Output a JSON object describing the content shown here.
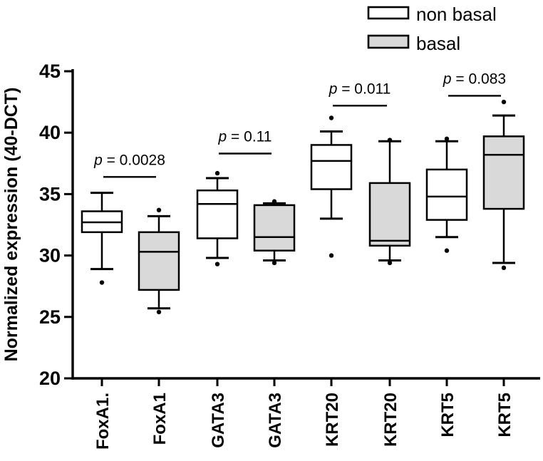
{
  "chart_data": {
    "type": "box",
    "title": "",
    "xlabel": "",
    "ylabel": "Normalized expression (40-DCT)",
    "ylim": [
      20,
      45
    ],
    "yticks": [
      20,
      25,
      30,
      35,
      40,
      45
    ],
    "grid": false,
    "legend_position": "top-right",
    "legend": [
      {
        "label": "non basal",
        "fill": "#ffffff"
      },
      {
        "label": "basal",
        "fill": "#d9d9d9"
      }
    ],
    "colors": {
      "stroke": "#000000",
      "non_basal_fill": "#ffffff",
      "basal_fill": "#d9d9d9"
    },
    "groups": [
      {
        "label": "FoxA1.",
        "series": "non basal",
        "fill": "#ffffff",
        "whisker_low": 28.9,
        "q1": 31.9,
        "median": 32.7,
        "q3": 33.6,
        "whisker_high": 35.1,
        "outliers": [
          27.8
        ]
      },
      {
        "label": "FoxA1",
        "series": "basal",
        "fill": "#d9d9d9",
        "whisker_low": 25.7,
        "q1": 27.2,
        "median": 30.3,
        "q3": 31.9,
        "whisker_high": 33.2,
        "outliers": [
          33.7,
          25.4
        ]
      },
      {
        "label": "GATA3",
        "series": "non basal",
        "fill": "#ffffff",
        "whisker_low": 29.8,
        "q1": 31.4,
        "median": 34.2,
        "q3": 35.3,
        "whisker_high": 36.3,
        "outliers": [
          36.7,
          29.3
        ]
      },
      {
        "label": "GATA3",
        "series": "basal",
        "fill": "#d9d9d9",
        "whisker_low": 29.6,
        "q1": 30.4,
        "median": 31.5,
        "q3": 34.1,
        "whisker_high": 34.25,
        "outliers": [
          34.4,
          29.4
        ]
      },
      {
        "label": "KRT20",
        "series": "non basal",
        "fill": "#ffffff",
        "whisker_low": 33.0,
        "q1": 35.4,
        "median": 37.7,
        "q3": 39.0,
        "whisker_high": 40.1,
        "outliers": [
          41.2,
          30.0
        ]
      },
      {
        "label": "KRT20",
        "series": "basal",
        "fill": "#d9d9d9",
        "whisker_low": 29.6,
        "q1": 30.8,
        "median": 31.2,
        "q3": 35.9,
        "whisker_high": 39.3,
        "outliers": [
          39.4,
          29.4
        ]
      },
      {
        "label": "KRT5",
        "series": "non basal",
        "fill": "#ffffff",
        "whisker_low": 31.5,
        "q1": 32.9,
        "median": 34.8,
        "q3": 37.0,
        "whisker_high": 39.3,
        "outliers": [
          39.5,
          30.4
        ]
      },
      {
        "label": "KRT5",
        "series": "basal",
        "fill": "#d9d9d9",
        "whisker_low": 29.4,
        "q1": 33.8,
        "median": 38.2,
        "q3": 39.7,
        "whisker_high": 41.4,
        "outliers": [
          42.5,
          29.0
        ]
      }
    ],
    "comparisons": [
      {
        "between": [
          0,
          1
        ],
        "label": "p = 0.0028",
        "bar_y": 36.4
      },
      {
        "between": [
          2,
          3
        ],
        "label": "p = 0.11",
        "bar_y": 38.3
      },
      {
        "between": [
          4,
          5
        ],
        "label": "p = 0.011",
        "bar_y": 42.2
      },
      {
        "between": [
          6,
          7
        ],
        "label": "p = 0.083",
        "bar_y": 43.0
      }
    ]
  }
}
